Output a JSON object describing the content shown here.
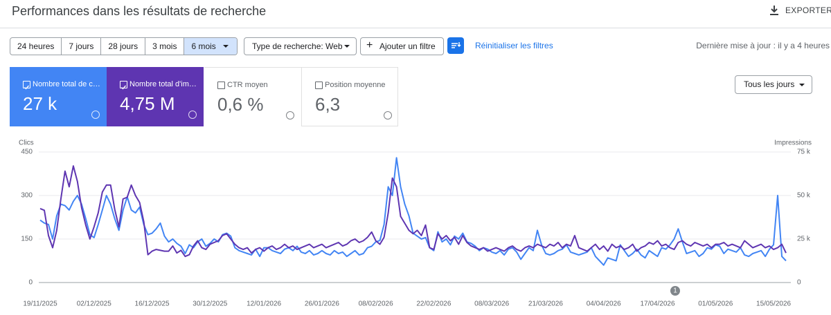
{
  "header": {
    "title": "Performances dans les résultats de recherche",
    "export": "EXPORTER"
  },
  "filters": {
    "date_ranges": [
      "24 heures",
      "7 jours",
      "28 jours",
      "3 mois",
      "6 mois"
    ],
    "search_type": "Type de recherche: Web",
    "add_filter": "Ajouter un filtre",
    "reset": "Réinitialiser les filtres",
    "last_update": "Dernière mise à jour : il y a 4 heures"
  },
  "cards": [
    {
      "label": "Nombre total de c…",
      "value": "27 k"
    },
    {
      "label": "Nombre total d'im…",
      "value": "4,75 M"
    },
    {
      "label": "CTR moyen",
      "value": "0,6 %"
    },
    {
      "label": "Position moyenne",
      "value": "6,3"
    }
  ],
  "day_filter": "Tous les jours",
  "chart_data": {
    "type": "line",
    "y_label": "Clics",
    "y2_label": "Impressions",
    "grid": true,
    "annotations": [
      "1"
    ],
    "categories": [
      "19/11/2025",
      null,
      null,
      null,
      null,
      null,
      null,
      null,
      null,
      null,
      null,
      null,
      null,
      "02/12/2025",
      null,
      null,
      null,
      null,
      null,
      null,
      null,
      null,
      null,
      null,
      null,
      null,
      null,
      "16/12/2025",
      null,
      null,
      null,
      null,
      null,
      null,
      null,
      null,
      null,
      null,
      null,
      null,
      null,
      "30/12/2025",
      null,
      null,
      null,
      null,
      null,
      null,
      null,
      null,
      null,
      null,
      null,
      null,
      "12/01/2026",
      null,
      null,
      null,
      null,
      null,
      null,
      null,
      null,
      null,
      null,
      null,
      null,
      null,
      "26/01/2026",
      null,
      null,
      null,
      null,
      null,
      null,
      null,
      null,
      null,
      null,
      null,
      null,
      "08/02/2026",
      null,
      null,
      null,
      null,
      null,
      null,
      null,
      null,
      null,
      null,
      null,
      null,
      null,
      "22/02/2026",
      null,
      null,
      null,
      null,
      null,
      null,
      null,
      null,
      null,
      null,
      null,
      null,
      null,
      "08/03/2026",
      null,
      null,
      null,
      null,
      null,
      null,
      null,
      null,
      null,
      null,
      null,
      null,
      "21/03/2026",
      null,
      null,
      null,
      null,
      null,
      null,
      null,
      null,
      null,
      null,
      null,
      null,
      null,
      "04/04/2026",
      null,
      null,
      null,
      null,
      null,
      null,
      null,
      null,
      null,
      null,
      null,
      null,
      "17/04/2026",
      null,
      null,
      null,
      null,
      null,
      null,
      null,
      null,
      null,
      null,
      null,
      null,
      null,
      "01/05/2026",
      null,
      null,
      null,
      null,
      null,
      null,
      null,
      null,
      null,
      null,
      null,
      null,
      null,
      "15/05/2026",
      null,
      null,
      null
    ],
    "ylim": [
      0,
      450
    ],
    "yticks": [
      0,
      150,
      300,
      450
    ],
    "y2lim": [
      0,
      75000
    ],
    "y2ticks": [
      0,
      {
        "value": 25000,
        "label": "25 k"
      },
      {
        "value": 50000,
        "label": "50 k"
      },
      {
        "value": 75000,
        "label": "75 k"
      }
    ],
    "series": [
      {
        "color": "#4285f4",
        "values": [
          215,
          205,
          200,
          150,
          230,
          270,
          265,
          250,
          280,
          300,
          270,
          220,
          165,
          155,
          200,
          250,
          300,
          270,
          220,
          180,
          250,
          295,
          250,
          240,
          260,
          200,
          165,
          170,
          185,
          205,
          160,
          140,
          150,
          135,
          125,
          100,
          130,
          120,
          140,
          150,
          125,
          135,
          150,
          140,
          165,
          170,
          160,
          120,
          110,
          105,
          100,
          95,
          115,
          90,
          120,
          120,
          110,
          105,
          100,
          115,
          120,
          110,
          125,
          105,
          100,
          110,
          95,
          100,
          110,
          100,
          95,
          110,
          100,
          105,
          90,
          100,
          110,
          95,
          100,
          120,
          125,
          140,
          145,
          200,
          330,
          300,
          430,
          330,
          270,
          230,
          170,
          160,
          150,
          155,
          120,
          110,
          175,
          140,
          150,
          130,
          160,
          150,
          170,
          140,
          135,
          125,
          110,
          120,
          115,
          105,
          100,
          110,
          95,
          115,
          120,
          105,
          80,
          100,
          120,
          110,
          180,
          130,
          100,
          95,
          100,
          110,
          115,
          130,
          105,
          100,
          95,
          100,
          105,
          120,
          90,
          75,
          60,
          85,
          80,
          75,
          130,
          110,
          90,
          100,
          115,
          95,
          85,
          110,
          100,
          90,
          120,
          115,
          130,
          150,
          185,
          140,
          100,
          105,
          110,
          90,
          100,
          120,
          115,
          130,
          125,
          100,
          115,
          110,
          105,
          120,
          95,
          90,
          100,
          105,
          110,
          90,
          115,
          130,
          300,
          90,
          75
        ]
      },
      {
        "color": "#5e35b1",
        "axis": "y2",
        "values": [
          42500,
          41500,
          27000,
          20000,
          30000,
          48000,
          64000,
          55000,
          67000,
          58000,
          43000,
          33000,
          25000,
          32000,
          40000,
          52000,
          56000,
          56000,
          42000,
          32000,
          48000,
          49000,
          56000,
          50000,
          46000,
          35000,
          16000,
          18000,
          19000,
          18500,
          18000,
          18000,
          21000,
          17000,
          18500,
          15000,
          16000,
          21000,
          24000,
          20000,
          19000,
          22000,
          23000,
          24000,
          27000,
          28000,
          25000,
          22000,
          20000,
          19000,
          20000,
          17000,
          19000,
          20000,
          18000,
          20000,
          21000,
          19000,
          20000,
          22000,
          20000,
          21000,
          19000,
          20000,
          21000,
          22000,
          20000,
          21000,
          22000,
          20000,
          21000,
          22000,
          23000,
          21000,
          22000,
          24000,
          25000,
          23000,
          24000,
          26000,
          29000,
          24000,
          22000,
          26000,
          40000,
          60000,
          55000,
          38000,
          34000,
          30000,
          28000,
          30000,
          27000,
          33000,
          20000,
          19000,
          28000,
          25000,
          27000,
          24000,
          26000,
          22000,
          27000,
          23000,
          21000,
          20000,
          19000,
          20000,
          18000,
          19000,
          20000,
          19000,
          18000,
          20000,
          21000,
          19000,
          18000,
          20000,
          21000,
          20000,
          22000,
          21000,
          20000,
          22000,
          21000,
          23000,
          20000,
          22000,
          21000,
          27000,
          20000,
          19000,
          18000,
          20000,
          22000,
          19000,
          21000,
          18000,
          22000,
          20000,
          21000,
          19000,
          20000,
          22000,
          18000,
          20000,
          21000,
          23000,
          22000,
          24000,
          21000,
          22000,
          20000,
          19000,
          23000,
          24000,
          22000,
          21000,
          23000,
          22000,
          21000,
          22000,
          20000,
          22000,
          22000,
          23000,
          21000,
          22000,
          21000,
          20000,
          24000,
          22000,
          20000,
          21000,
          22000,
          20000,
          21000,
          19000,
          20000,
          22000,
          17000
        ]
      }
    ]
  }
}
